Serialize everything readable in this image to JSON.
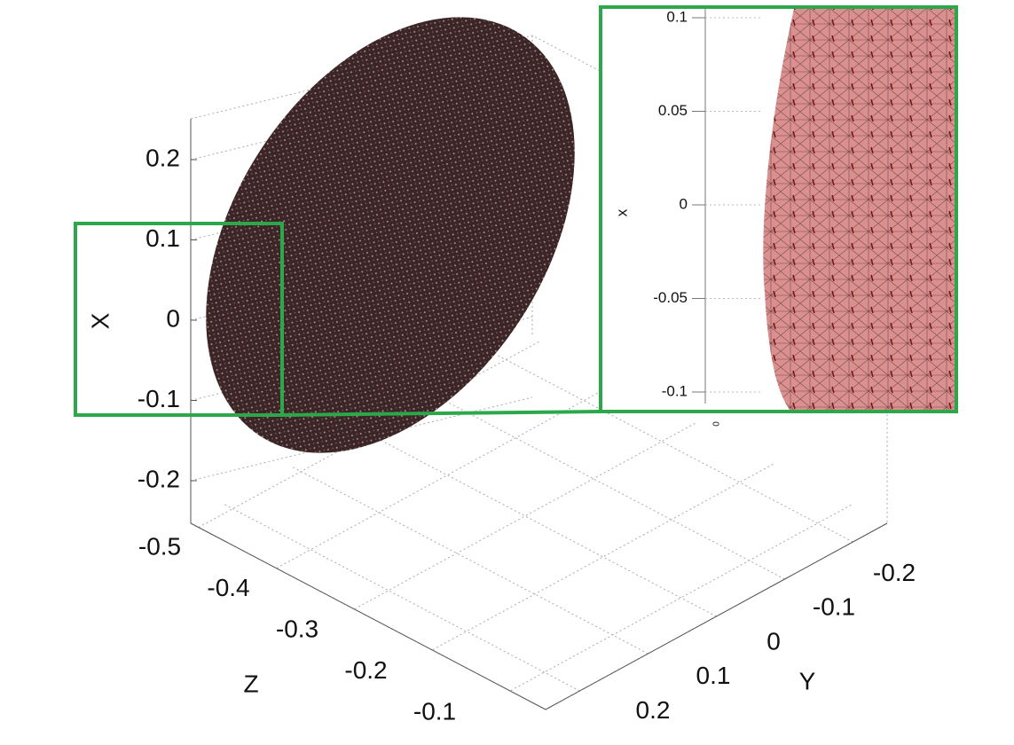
{
  "chart_data": {
    "type": "surface3d",
    "main": {
      "xlabel": "X",
      "ylabel": "Y",
      "zlabel": "Z",
      "xlim": [
        -0.25,
        0.25
      ],
      "xticks": [
        -0.2,
        -0.1,
        0,
        0.1,
        0.2
      ],
      "ylim": [
        -0.25,
        0.25
      ],
      "yticks": [
        -0.2,
        -0.1,
        0,
        0.1,
        0.2
      ],
      "zlim": [
        -0.5,
        -0.05
      ],
      "zticks": [
        -0.5,
        -0.4,
        -0.3,
        -0.2,
        -0.1
      ],
      "grid": true,
      "surface_color": "#3b2627",
      "highlight_color": "#2ca84a"
    },
    "inset": {
      "xlabel": "x",
      "xlim": [
        -0.11,
        0.11
      ],
      "xticks": [
        -0.1,
        -0.05,
        0,
        0.05,
        0.1
      ],
      "yticks": [
        0
      ],
      "grid": true,
      "surface_color": "#d9908f"
    }
  }
}
